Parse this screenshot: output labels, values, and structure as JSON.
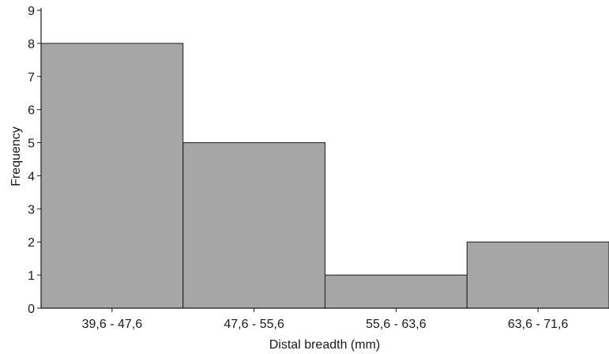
{
  "chart_data": {
    "type": "bar",
    "title": "",
    "xlabel": "Distal breadth (mm)",
    "ylabel": "Frequency",
    "categories": [
      "39,6 - 47,6",
      "47,6 - 55,6",
      "55,6 - 63,6",
      "63,6 - 71,6"
    ],
    "values": [
      8,
      5,
      1,
      2
    ],
    "ylim": [
      0,
      9
    ],
    "yticks": [
      0,
      1,
      2,
      3,
      4,
      5,
      6,
      7,
      8,
      9
    ],
    "grid": false,
    "legend": "none",
    "bar_color": "#a6a6a6",
    "bar_edge_color": "#1a1a1a",
    "axis_color": "#1a1a1a"
  }
}
